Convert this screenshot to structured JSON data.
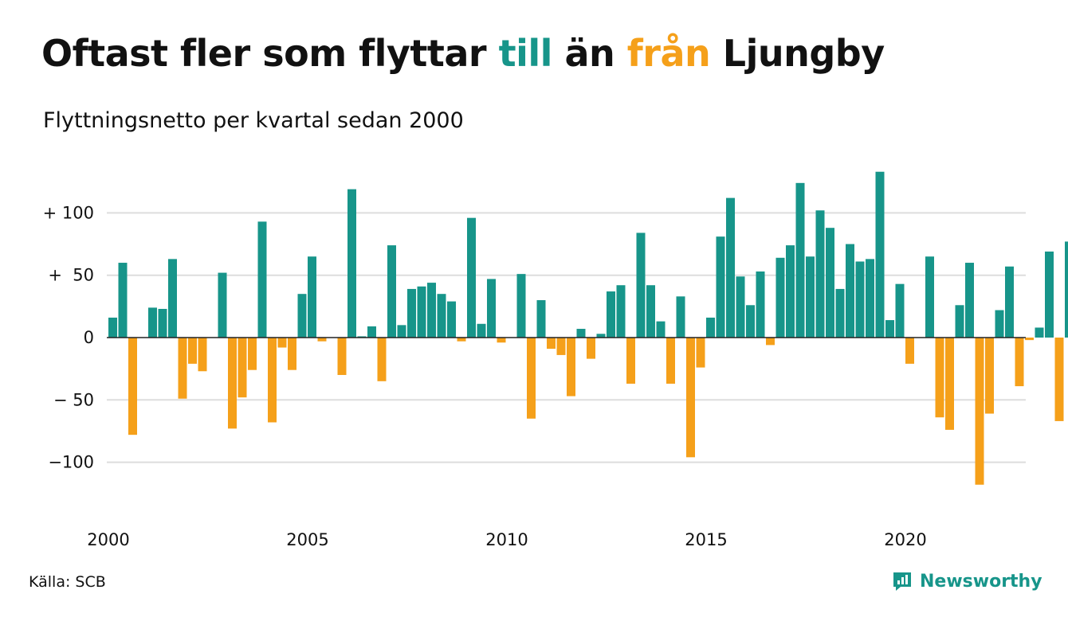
{
  "header": {
    "title_pre": "Oftast fler som flyttar",
    "title_till": "till",
    "title_mid": "än",
    "title_fran": "från",
    "title_post": "Ljungby",
    "subtitle": "Flyttningsnetto per kvartal sedan 2000"
  },
  "footer": {
    "source": "Källa: SCB",
    "brand": "Newsworthy"
  },
  "chart_data": {
    "type": "bar",
    "start_year": 2000,
    "periods_per_year": 4,
    "values": [
      16,
      60,
      -78,
      0,
      24,
      23,
      63,
      -49,
      -21,
      -27,
      0,
      52,
      -73,
      -48,
      -26,
      93,
      -68,
      -8,
      -26,
      35,
      65,
      -3,
      0,
      -30,
      119,
      1,
      9,
      -35,
      74,
      10,
      39,
      41,
      44,
      35,
      29,
      -3,
      96,
      11,
      47,
      -4,
      0,
      51,
      -65,
      30,
      -9,
      -14,
      -47,
      7,
      -17,
      3,
      37,
      42,
      -37,
      84,
      42,
      13,
      -37,
      33,
      -96,
      -24,
      16,
      81,
      112,
      49,
      26,
      53,
      -6,
      64,
      74,
      124,
      65,
      102,
      88,
      39,
      75,
      61,
      63,
      133,
      14,
      43,
      -21,
      0,
      65,
      -64,
      -74,
      26,
      60,
      -118,
      -61,
      22,
      57,
      -39,
      -2,
      8,
      69,
      -67,
      77
    ],
    "y_ticks": [
      {
        "value": 100,
        "label": "+ 100"
      },
      {
        "value": 50,
        "label": "+  50"
      },
      {
        "value": 0,
        "label": "0"
      },
      {
        "value": -50,
        "label": "− 50"
      },
      {
        "value": -100,
        "label": "−100"
      }
    ],
    "x_ticks": [
      {
        "year": 2000,
        "label": "2000"
      },
      {
        "year": 2005,
        "label": "2005"
      },
      {
        "year": 2010,
        "label": "2010"
      },
      {
        "year": 2015,
        "label": "2015"
      },
      {
        "year": 2020,
        "label": "2020"
      }
    ],
    "ylim": [
      -125,
      140
    ],
    "grid": true,
    "colors": {
      "positive": "#17958a",
      "negative": "#f5a01a",
      "grid": "#dddddd",
      "zero": "#222222"
    }
  }
}
